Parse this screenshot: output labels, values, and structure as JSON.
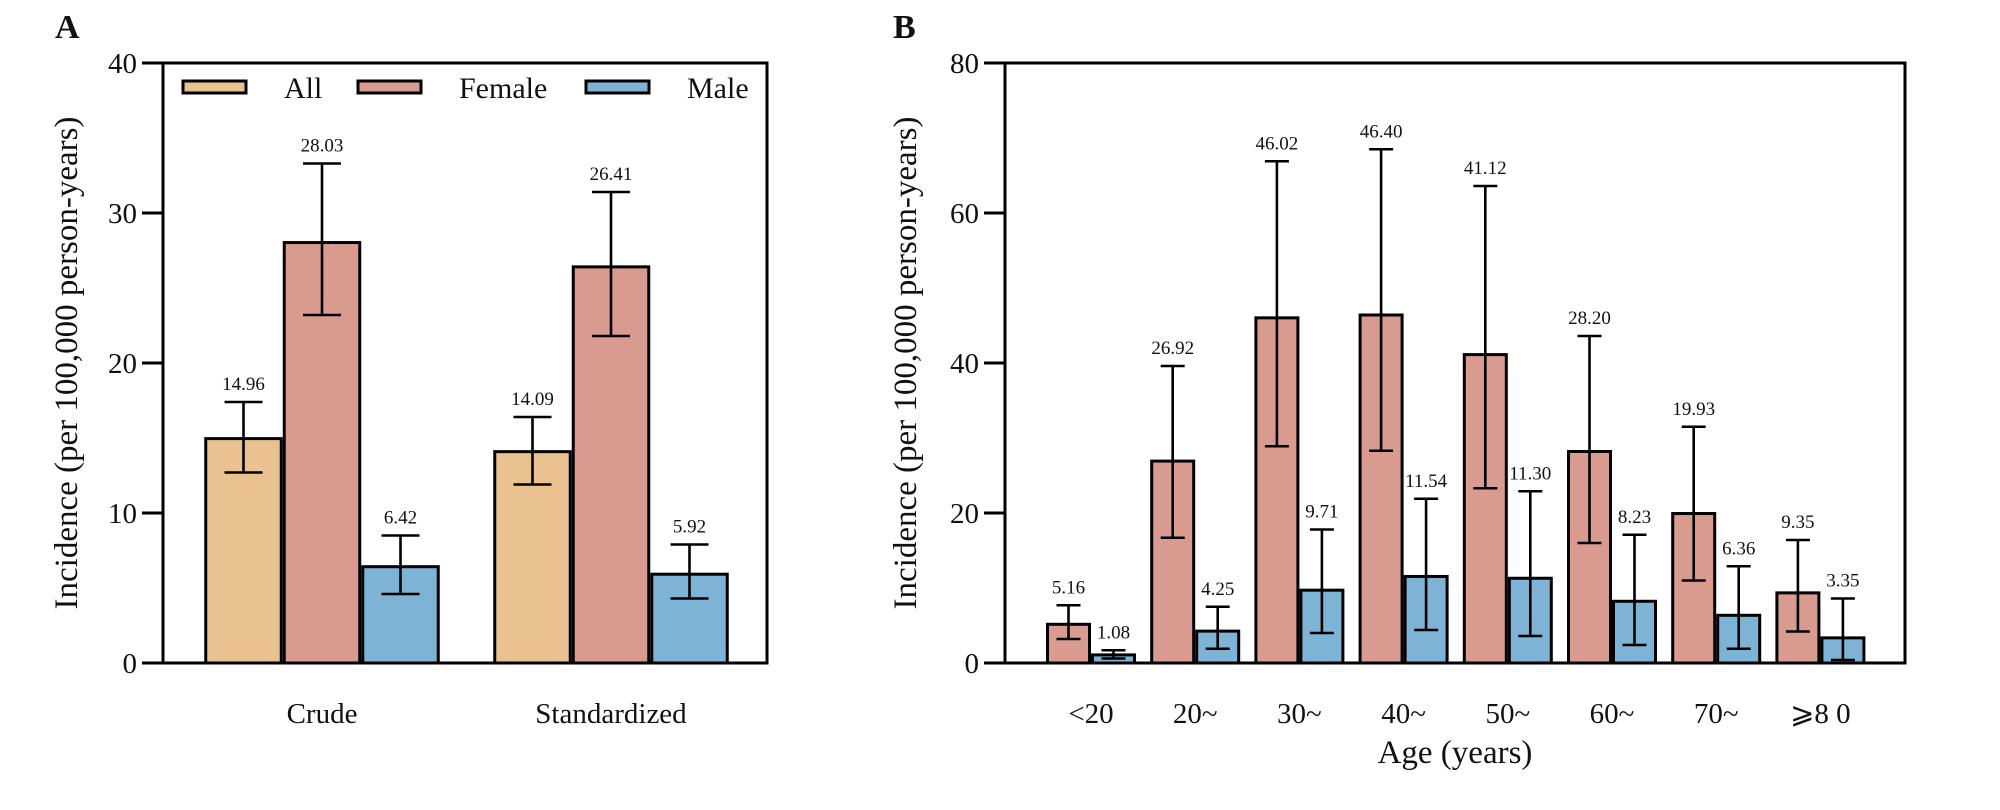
{
  "colors": {
    "All": "#EAC190",
    "Female": "#D99A90",
    "Male": "#7FB3D5",
    "axis": "#000000"
  },
  "chart_data": [
    {
      "panel": "A",
      "type": "bar",
      "title": "",
      "xlabel": "",
      "ylabel": "Incidence (per 100,000 person-years)",
      "ylim": [
        0,
        40
      ],
      "yticks": [
        0,
        10,
        20,
        30,
        40
      ],
      "grid": false,
      "legend": {
        "placement": "top",
        "entries": [
          "All",
          "Female",
          "Male"
        ]
      },
      "categories": [
        "Crude",
        "Standardized"
      ],
      "series": [
        {
          "name": "All",
          "values": [
            14.96,
            14.09
          ],
          "labels": [
            "14.96",
            "14.09"
          ],
          "ci_low": [
            12.7,
            11.9
          ],
          "ci_high": [
            17.4,
            16.4
          ]
        },
        {
          "name": "Female",
          "values": [
            28.03,
            26.41
          ],
          "labels": [
            "28.03",
            "26.41"
          ],
          "ci_low": [
            23.2,
            21.8
          ],
          "ci_high": [
            33.3,
            31.4
          ]
        },
        {
          "name": "Male",
          "values": [
            6.42,
            5.92
          ],
          "labels": [
            "6.42",
            "5.92"
          ],
          "ci_low": [
            4.6,
            4.3
          ],
          "ci_high": [
            8.5,
            7.9
          ]
        }
      ]
    },
    {
      "panel": "B",
      "type": "bar",
      "title": "",
      "xlabel": "Age (years)",
      "ylabel": "Incidence (per 100,000 person-years)",
      "ylim": [
        0,
        80
      ],
      "yticks": [
        0,
        20,
        40,
        60,
        80
      ],
      "grid": false,
      "categories": [
        "<20",
        "20~",
        "30~",
        "40~",
        "50~",
        "60~",
        "70~",
        "⩾8 0"
      ],
      "series": [
        {
          "name": "Female",
          "values": [
            5.16,
            26.92,
            46.02,
            46.4,
            41.12,
            28.2,
            19.93,
            9.35
          ],
          "labels": [
            "5.16",
            "26.92",
            "46.02",
            "46.40",
            "41.12",
            "28.20",
            "19.93",
            "9.35"
          ],
          "ci_low": [
            3.2,
            16.7,
            28.9,
            28.3,
            23.3,
            16.0,
            11.0,
            4.2
          ],
          "ci_high": [
            7.7,
            39.6,
            66.9,
            68.5,
            63.6,
            43.6,
            31.5,
            16.4
          ]
        },
        {
          "name": "Male",
          "values": [
            1.08,
            4.25,
            9.71,
            11.54,
            11.3,
            8.23,
            6.36,
            3.35
          ],
          "labels": [
            "1.08",
            "4.25",
            "9.71",
            "11.54",
            "11.30",
            "8.23",
            "6.36",
            "3.35"
          ],
          "ci_low": [
            0.6,
            1.9,
            4.0,
            4.4,
            3.6,
            2.4,
            1.9,
            0.4
          ],
          "ci_high": [
            1.7,
            7.5,
            17.8,
            21.9,
            22.9,
            17.1,
            12.9,
            8.6
          ]
        }
      ]
    }
  ]
}
